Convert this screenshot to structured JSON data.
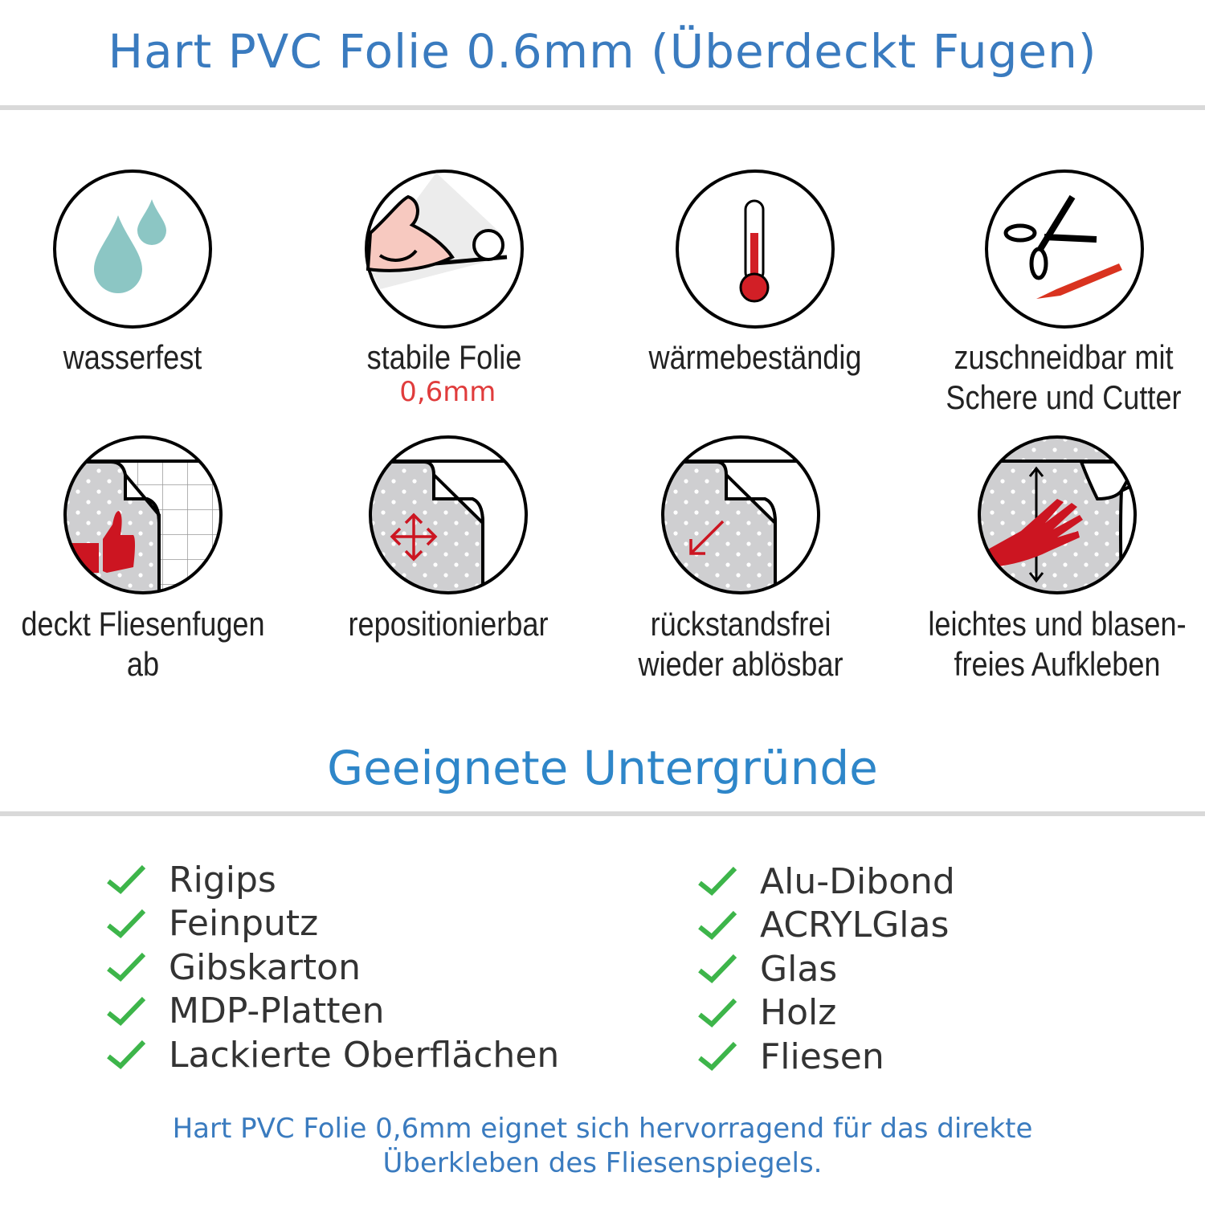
{
  "header": {
    "title": "Hart PVC Folie 0.6mm (Überdeckt Fugen)"
  },
  "features": [
    {
      "icon": "water-drops-icon",
      "label": "wasserfest"
    },
    {
      "icon": "strong-arm-icon",
      "label": "stabile Folie",
      "sub": "0,6mm"
    },
    {
      "icon": "thermometer-icon",
      "label": "wärmebeständig"
    },
    {
      "icon": "scissors-cutter-icon",
      "label": "zuschneidbar mit",
      "label2": "Schere und Cutter"
    },
    {
      "icon": "thumbs-up-tile-icon",
      "label": "deckt Fliesenfugen ab"
    },
    {
      "icon": "move-arrows-icon",
      "label": "repositionierbar"
    },
    {
      "icon": "peel-arrow-icon",
      "label": "rückstandsfrei",
      "label2": "wieder ablösbar"
    },
    {
      "icon": "hand-smooth-icon",
      "label": "leichtes und blasen-",
      "label2": "freies Aufkleben"
    }
  ],
  "surfaces": {
    "title": "Geeignete Untergründe",
    "left": [
      "Rigips",
      "Feinputz",
      "Gibskarton",
      "MDP-Platten",
      "Lackierte Oberflächen"
    ],
    "right": [
      "Alu-Dibond",
      "ACRYLGlas",
      "Glas",
      "Holz",
      "Fliesen"
    ]
  },
  "footer": {
    "line1": "Hart PVC Folie 0,6mm eignet sich hervorragend für das direkte",
    "line2": "Überkleben des Fliesenspiegels."
  },
  "colors": {
    "title": "#3a7bbf",
    "heading": "#2e86c9",
    "accent_red": "#e03c3c",
    "check_green": "#3db54a",
    "rule": "#d9d9d9"
  }
}
